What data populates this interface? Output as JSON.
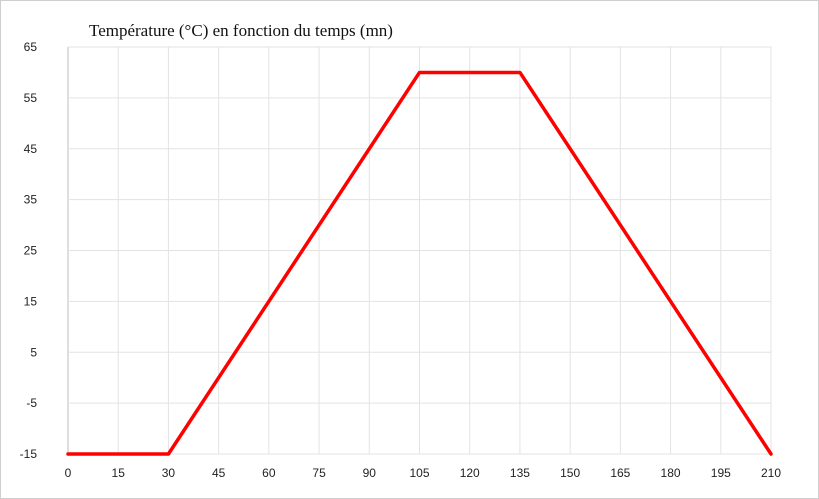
{
  "chart_data": {
    "type": "line",
    "title": "Température (°C) en fonction du temps (mn)",
    "xlabel": "",
    "ylabel": "",
    "xlim": [
      0,
      210
    ],
    "ylim": [
      -15,
      65
    ],
    "x_ticks": [
      0,
      15,
      30,
      45,
      60,
      75,
      90,
      105,
      120,
      135,
      150,
      165,
      180,
      195,
      210
    ],
    "y_ticks": [
      -15,
      -5,
      5,
      15,
      25,
      35,
      45,
      55,
      65
    ],
    "grid": true,
    "legend": "none",
    "series": [
      {
        "color": "#ff0000",
        "x": [
          0,
          30,
          105,
          135,
          210
        ],
        "y": [
          -15,
          -15,
          60,
          60,
          -15
        ]
      }
    ]
  }
}
